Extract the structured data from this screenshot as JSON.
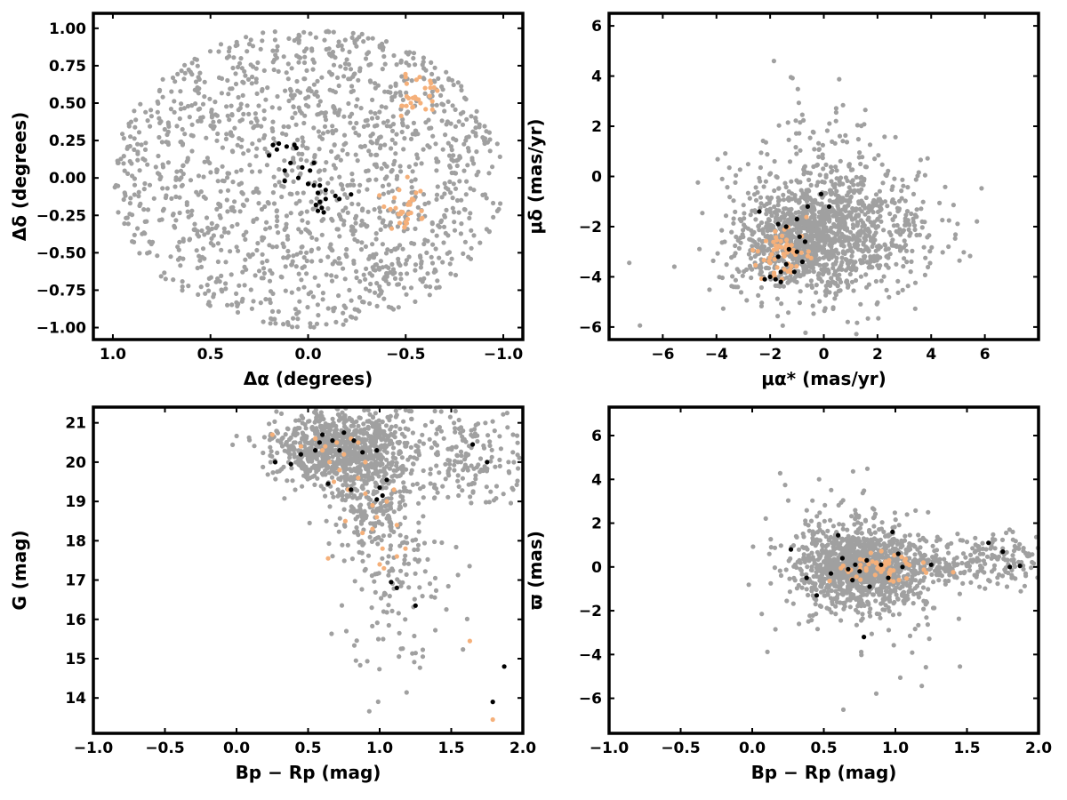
{
  "colors": {
    "field": "#a0a0a0",
    "group_orange": "#f5b07a",
    "group_black": "#000000",
    "frame": "#000000"
  },
  "chart_data": [
    {
      "id": "sky",
      "type": "scatter",
      "xlabel": "Δα (degrees)",
      "ylabel": "Δδ (degrees)",
      "xlim": [
        1.1,
        -1.1
      ],
      "ylim": [
        -1.08,
        1.1
      ],
      "xticks": [
        1.0,
        0.5,
        0.0,
        -0.5,
        -1.0
      ],
      "xtick_labels": [
        "1.0",
        "0.5",
        "0.0",
        "−0.5",
        "−1.0"
      ],
      "yticks": [
        -1.0,
        -0.75,
        -0.5,
        -0.25,
        0.0,
        0.25,
        0.5,
        0.75,
        1.0
      ],
      "ytick_labels": [
        "−1.00",
        "−0.75",
        "−0.50",
        "−0.25",
        "0.00",
        "0.25",
        "0.50",
        "0.75",
        "1.00"
      ],
      "grid": false,
      "series": [
        {
          "group": "field",
          "distribution": "uniform within circle",
          "center": [
            0.0,
            0.0
          ],
          "radius": [
            1.0,
            1.0
          ],
          "count": 1500
        },
        {
          "group": "orange",
          "clusters": [
            {
              "center": [
                -0.56,
                0.55
              ],
              "spread": [
                0.07,
                0.07
              ],
              "count": 30
            },
            {
              "center": [
                -0.5,
                -0.2
              ],
              "spread": [
                0.06,
                0.08
              ],
              "count": 30
            }
          ]
        },
        {
          "group": "black",
          "points": [
            [
              0.18,
              0.22
            ],
            [
              0.15,
              0.23
            ],
            [
              0.16,
              0.19
            ],
            [
              0.2,
              0.15
            ],
            [
              0.11,
              0.21
            ],
            [
              0.07,
              0.22
            ],
            [
              0.06,
              0.2
            ],
            [
              0.09,
              0.1
            ],
            [
              -0.03,
              0.1
            ],
            [
              0.03,
              0.07
            ],
            [
              -0.01,
              0.05
            ],
            [
              0.12,
              0.05
            ],
            [
              0.05,
              0.0
            ],
            [
              0.12,
              -0.02
            ],
            [
              0.0,
              -0.04
            ],
            [
              -0.03,
              -0.05
            ],
            [
              -0.06,
              -0.05
            ],
            [
              -0.09,
              -0.08
            ],
            [
              -0.05,
              -0.1
            ],
            [
              -0.14,
              -0.12
            ],
            [
              -0.16,
              -0.14
            ],
            [
              -0.22,
              -0.11
            ],
            [
              -0.09,
              -0.14
            ],
            [
              -0.06,
              -0.16
            ],
            [
              -0.04,
              -0.18
            ],
            [
              -0.07,
              -0.2
            ],
            [
              -0.05,
              -0.22
            ],
            [
              -0.08,
              -0.23
            ]
          ]
        }
      ]
    },
    {
      "id": "pm",
      "type": "scatter",
      "xlabel": "μα* (mas/yr)",
      "ylabel": "μδ (mas/yr)",
      "xlim": [
        -8.0,
        8.0
      ],
      "ylim": [
        -6.5,
        6.5
      ],
      "xticks": [
        -6,
        -4,
        -2,
        0,
        2,
        4,
        6
      ],
      "xtick_labels": [
        "−6",
        "−4",
        "−2",
        "0",
        "2",
        "4",
        "6"
      ],
      "yticks": [
        -6,
        -4,
        -2,
        0,
        2,
        4,
        6
      ],
      "ytick_labels": [
        "−6",
        "−4",
        "−2",
        "0",
        "2",
        "4",
        "6"
      ],
      "grid": false,
      "series": [
        {
          "group": "field",
          "clusters": [
            {
              "center": [
                0.2,
                -2.3
              ],
              "spread": [
                1.8,
                1.3
              ],
              "count": 1100
            },
            {
              "center": [
                -1.2,
                -2.8
              ],
              "spread": [
                0.8,
                0.7
              ],
              "count": 300
            },
            {
              "center": [
                0.5,
                0.5
              ],
              "spread": [
                1.8,
                1.6
              ],
              "count": 100
            }
          ]
        },
        {
          "group": "orange",
          "clusters": [
            {
              "center": [
                -1.5,
                -3.0
              ],
              "spread": [
                0.45,
                0.5
              ],
              "count": 55
            }
          ]
        },
        {
          "group": "black",
          "points": [
            [
              -2.4,
              -1.4
            ],
            [
              -1.7,
              -1.9
            ],
            [
              -1.4,
              -2.0
            ],
            [
              -1.0,
              -1.7
            ],
            [
              -0.1,
              -0.7
            ],
            [
              0.2,
              -1.2
            ],
            [
              -0.6,
              -1.2
            ],
            [
              -0.9,
              -2.4
            ],
            [
              -0.7,
              -2.6
            ],
            [
              -1.3,
              -2.9
            ],
            [
              -1.0,
              -3.0
            ],
            [
              -1.7,
              -3.2
            ],
            [
              -1.4,
              -3.5
            ],
            [
              -2.0,
              -4.0
            ],
            [
              -1.8,
              -4.1
            ],
            [
              -1.6,
              -4.2
            ],
            [
              -1.1,
              -3.8
            ],
            [
              -0.8,
              -3.4
            ],
            [
              -1.6,
              -3.8
            ],
            [
              -2.2,
              -4.1
            ]
          ]
        }
      ]
    },
    {
      "id": "cmd",
      "type": "scatter",
      "xlabel": "Bp − Rp (mag)",
      "ylabel": "G (mag)",
      "xlim": [
        -1.0,
        2.0
      ],
      "ylim": [
        13.1,
        21.4
      ],
      "xticks": [
        -1.0,
        -0.5,
        0.0,
        0.5,
        1.0,
        1.5,
        2.0
      ],
      "xtick_labels": [
        "−1.0",
        "−0.5",
        "0.0",
        "0.5",
        "1.0",
        "1.5",
        "2.0"
      ],
      "yticks": [
        14,
        15,
        16,
        17,
        18,
        19,
        20,
        21
      ],
      "ytick_labels": [
        "14",
        "15",
        "16",
        "17",
        "18",
        "19",
        "20",
        "21"
      ],
      "grid": false,
      "series": [
        {
          "group": "field",
          "clusters": [
            {
              "center": [
                0.7,
                20.4
              ],
              "spread": [
                0.22,
                0.45
              ],
              "count": 800
            },
            {
              "center": [
                0.95,
                19.2
              ],
              "spread": [
                0.15,
                0.8
              ],
              "count": 300
            },
            {
              "center": [
                1.6,
                20.2
              ],
              "spread": [
                0.25,
                0.6
              ],
              "count": 200
            },
            {
              "center": [
                1.15,
                17.2
              ],
              "spread": [
                0.18,
                1.3
              ],
              "count": 120
            }
          ]
        },
        {
          "group": "orange",
          "points": [
            [
              0.25,
              20.7
            ],
            [
              0.45,
              20.4
            ],
            [
              0.55,
              20.6
            ],
            [
              0.62,
              20.4
            ],
            [
              0.7,
              20.5
            ],
            [
              0.8,
              20.6
            ],
            [
              0.85,
              20.5
            ],
            [
              0.75,
              20.2
            ],
            [
              0.65,
              20.0
            ],
            [
              0.72,
              19.8
            ],
            [
              0.68,
              19.5
            ],
            [
              0.78,
              19.3
            ],
            [
              0.85,
              19.6
            ],
            [
              0.9,
              19.2
            ],
            [
              0.95,
              18.9
            ],
            [
              1.05,
              19.0
            ],
            [
              1.1,
              19.3
            ],
            [
              1.12,
              18.4
            ],
            [
              0.98,
              18.6
            ],
            [
              0.95,
              18.3
            ],
            [
              0.88,
              18.2
            ],
            [
              0.76,
              18.5
            ],
            [
              1.02,
              17.8
            ],
            [
              1.0,
              17.4
            ],
            [
              1.03,
              17.3
            ],
            [
              1.12,
              17.6
            ],
            [
              1.18,
              17.8
            ],
            [
              0.64,
              17.55
            ],
            [
              1.63,
              15.45
            ],
            [
              1.79,
              13.45
            ],
            [
              0.9,
              20.0
            ],
            [
              0.6,
              20.3
            ]
          ]
        },
        {
          "group": "black",
          "points": [
            [
              0.27,
              20.0
            ],
            [
              0.38,
              19.95
            ],
            [
              0.45,
              20.2
            ],
            [
              0.55,
              20.3
            ],
            [
              0.58,
              20.5
            ],
            [
              0.67,
              20.55
            ],
            [
              0.75,
              20.75
            ],
            [
              0.82,
              20.55
            ],
            [
              0.88,
              20.25
            ],
            [
              0.98,
              20.3
            ],
            [
              0.64,
              19.45
            ],
            [
              0.8,
              19.3
            ],
            [
              1.0,
              19.35
            ],
            [
              1.05,
              19.55
            ],
            [
              1.02,
              19.15
            ],
            [
              0.98,
              19.05
            ],
            [
              1.08,
              16.95
            ],
            [
              1.12,
              16.8
            ],
            [
              1.25,
              16.35
            ],
            [
              1.65,
              20.45
            ],
            [
              1.75,
              20.0
            ],
            [
              1.87,
              14.8
            ],
            [
              1.79,
              13.9
            ],
            [
              0.6,
              20.7
            ],
            [
              0.72,
              20.3
            ]
          ]
        }
      ]
    },
    {
      "id": "parallax",
      "type": "scatter",
      "xlabel": "Bp − Rp (mag)",
      "ylabel": "ϖ (mas)",
      "xlim": [
        -1.0,
        2.0
      ],
      "ylim": [
        -7.6,
        7.3
      ],
      "xticks": [
        -1.0,
        -0.5,
        0.0,
        0.5,
        1.0,
        1.5,
        2.0
      ],
      "xtick_labels": [
        "−1.0",
        "−0.5",
        "0.0",
        "0.5",
        "1.0",
        "1.5",
        "2.0"
      ],
      "yticks": [
        -6,
        -4,
        -2,
        0,
        2,
        4,
        6
      ],
      "ytick_labels": [
        "−6",
        "−4",
        "−2",
        "0",
        "2",
        "4",
        "6"
      ],
      "grid": false,
      "series": [
        {
          "group": "field",
          "clusters": [
            {
              "center": [
                0.75,
                0.0
              ],
              "spread": [
                0.22,
                0.9
              ],
              "count": 1000
            },
            {
              "center": [
                1.0,
                0.0
              ],
              "spread": [
                0.25,
                0.4
              ],
              "count": 200
            },
            {
              "center": [
                1.7,
                0.3
              ],
              "spread": [
                0.2,
                0.6
              ],
              "count": 160
            },
            {
              "center": [
                0.75,
                0.0
              ],
              "spread": [
                0.35,
                2.2
              ],
              "count": 140
            }
          ]
        },
        {
          "group": "orange",
          "clusters": [
            {
              "center": [
                0.9,
                0.0
              ],
              "spread": [
                0.18,
                0.35
              ],
              "count": 55
            }
          ]
        },
        {
          "group": "black",
          "points": [
            [
              0.27,
              0.8
            ],
            [
              0.38,
              -0.5
            ],
            [
              0.45,
              -1.3
            ],
            [
              0.55,
              -0.3
            ],
            [
              0.6,
              1.45
            ],
            [
              0.63,
              0.4
            ],
            [
              0.7,
              -0.6
            ],
            [
              0.75,
              -0.2
            ],
            [
              0.8,
              0.3
            ],
            [
              0.82,
              -0.9
            ],
            [
              0.78,
              -3.2
            ],
            [
              0.9,
              0.1
            ],
            [
              0.98,
              1.6
            ],
            [
              1.02,
              0.6
            ],
            [
              1.05,
              0.0
            ],
            [
              0.95,
              -0.5
            ],
            [
              1.25,
              0.1
            ],
            [
              1.65,
              1.1
            ],
            [
              1.75,
              0.7
            ],
            [
              1.8,
              0.0
            ],
            [
              1.87,
              0.05
            ],
            [
              0.67,
              -0.1
            ],
            [
              0.72,
              0.1
            ]
          ]
        }
      ]
    }
  ]
}
